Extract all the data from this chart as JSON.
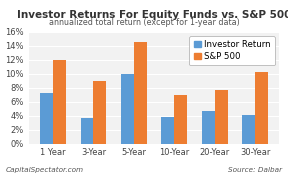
{
  "title": "Investor Returns For Equity Funds vs. S&P 500",
  "subtitle": "annualized total return (except for 1-year data)",
  "categories": [
    "1 Year",
    "3-Year",
    "5-Year",
    "10-Year",
    "20-Year",
    "30-Year"
  ],
  "investor_returns": [
    7.2,
    3.7,
    9.9,
    3.83,
    4.67,
    4.07
  ],
  "sp500_returns": [
    12.0,
    8.9,
    14.5,
    7.0,
    7.7,
    10.2
  ],
  "investor_color": "#5b9bd5",
  "sp500_color": "#ed7d31",
  "yticks": [
    0,
    2,
    4,
    6,
    8,
    10,
    12,
    14,
    16
  ],
  "ymax": 16,
  "legend_labels": [
    "Investor Return",
    "S&P 500"
  ],
  "source_text": "Source: Dalbar",
  "credit_text": "CapitalSpectator.com",
  "bg_color": "#ffffff",
  "plot_bg_color": "#f2f2f2",
  "title_fontsize": 7.5,
  "subtitle_fontsize": 5.8,
  "tick_fontsize": 6.0,
  "legend_fontsize": 6.2,
  "footer_fontsize": 5.2,
  "bar_width": 0.32
}
